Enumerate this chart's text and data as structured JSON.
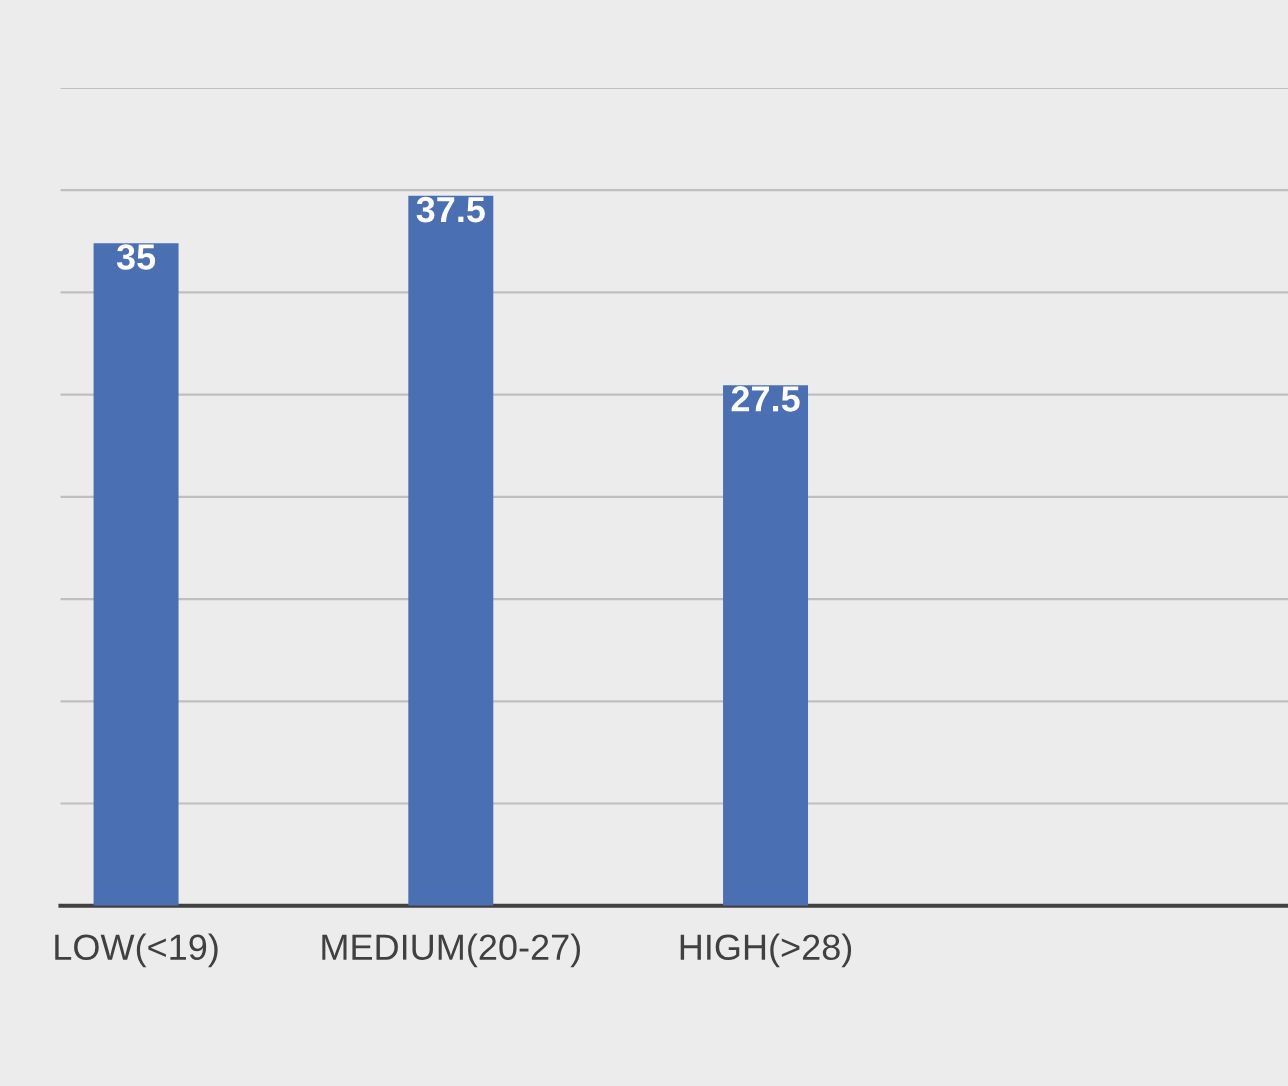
{
  "chart_data": {
    "type": "bar",
    "categories": [
      "LOW(<19)",
      "MEDIUM(20-27)",
      "HIGH(>28)"
    ],
    "values": [
      35,
      37.5,
      27.5
    ],
    "color": "#4a6fb3",
    "data_labels": true,
    "ylim": [
      0,
      43.2
    ],
    "yticks": [
      {
        "value": 0,
        "label": null
      },
      {
        "value": 5.4,
        "label": null
      },
      {
        "value": 10.8,
        "label": null
      },
      {
        "value": 16.2,
        "label": null
      },
      {
        "value": 21.6,
        "label": null
      },
      {
        "value": 27,
        "label": null
      },
      {
        "value": 32.4,
        "label": null
      },
      {
        "value": 37.8,
        "label": null
      },
      {
        "value": 43.2,
        "label": null
      }
    ],
    "grid": "y",
    "tick_labels": "x"
  }
}
